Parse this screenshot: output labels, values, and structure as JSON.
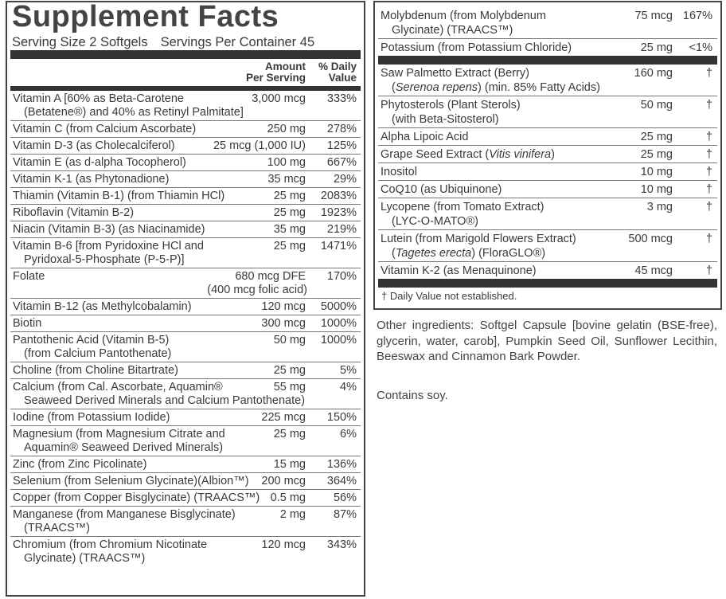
{
  "title": "Supplement Facts",
  "serving_size": "Serving Size 2 Softgels",
  "servings_per_container": "Servings Per Container 45",
  "header": {
    "amount": [
      "Amount",
      "Per Serving"
    ],
    "daily_value": [
      "% Daily",
      "Value"
    ]
  },
  "left_rows": [
    {
      "name": [
        "Vitamin A [60% as Beta-Carotene",
        "(Betatene®) and 40% as Retinyl Palmitate]"
      ],
      "amount": "3,000 mcg",
      "dv": "333%"
    },
    {
      "name": [
        "Vitamin C (from Calcium Ascorbate)"
      ],
      "amount": "250 mg",
      "dv": "278%"
    },
    {
      "name": [
        "Vitamin D-3 (as Cholecalciferol)"
      ],
      "amount": "25 mcg (1,000 IU)",
      "dv": "125%"
    },
    {
      "name": [
        "Vitamin E (as d-alpha Tocopherol)"
      ],
      "amount": "100 mg",
      "dv": "667%"
    },
    {
      "name": [
        "Vitamin K-1 (as Phytonadione)"
      ],
      "amount": "35 mcg",
      "dv": "29%"
    },
    {
      "name": [
        "Thiamin (Vitamin B-1) (from Thiamin HCl)"
      ],
      "amount": "25 mg",
      "dv": "2083%"
    },
    {
      "name": [
        "Riboflavin (Vitamin B-2)"
      ],
      "amount": "25 mg",
      "dv": "1923%"
    },
    {
      "name": [
        "Niacin (Vitamin B-3) (as Niacinamide)"
      ],
      "amount": "35 mg",
      "dv": "219%"
    },
    {
      "name": [
        "Vitamin B-6 [from Pyridoxine HCl and",
        "Pyridoxal-5-Phosphate (P-5-P)]"
      ],
      "amount": "25 mg",
      "dv": "1471%"
    },
    {
      "name": [
        "Folate"
      ],
      "amount": "680 mcg DFE",
      "amount_note": "(400 mcg folic acid)",
      "dv": "170%"
    },
    {
      "name": [
        "Vitamin B-12 (as Methylcobalamin)"
      ],
      "amount": "120 mcg",
      "dv": "5000%"
    },
    {
      "name": [
        "Biotin"
      ],
      "amount": "300 mcg",
      "dv": "1000%"
    },
    {
      "name": [
        "Pantothenic Acid (Vitamin B-5)",
        "(from Calcium Pantothenate)"
      ],
      "amount": "50 mg",
      "dv": "1000%"
    },
    {
      "name": [
        "Choline (from Choline Bitartrate)"
      ],
      "amount": "25 mg",
      "dv": "5%"
    },
    {
      "name": [
        "Calcium (from Cal. Ascorbate, Aquamin®",
        "Seaweed Derived Minerals and Calcium Pantothenate)"
      ],
      "amount": "55 mg",
      "dv": "4%"
    },
    {
      "name": [
        "Iodine (from Potassium Iodide)"
      ],
      "amount": "225 mcg",
      "dv": "150%"
    },
    {
      "name": [
        "Magnesium (from Magnesium Citrate and",
        "Aquamin® Seaweed Derived Minerals)"
      ],
      "amount": "25 mg",
      "dv": "6%"
    },
    {
      "name": [
        "Zinc (from Zinc Picolinate)"
      ],
      "amount": "15 mg",
      "dv": "136%"
    },
    {
      "name": [
        "Selenium (from Selenium Glycinate)(Albion™)"
      ],
      "amount": "200 mcg",
      "dv": "364%"
    },
    {
      "name": [
        "Copper (from Copper Bisglycinate) (TRAACS™)"
      ],
      "amount": "0.5 mg",
      "dv": "56%"
    },
    {
      "name": [
        "Manganese (from Manganese Bisglycinate)",
        "(TRAACS™)"
      ],
      "amount": "2 mg",
      "dv": "87%"
    },
    {
      "name": [
        "Chromium (from Chromium Nicotinate",
        "Glycinate) (TRAACS™)"
      ],
      "amount": "120 mcg",
      "dv": "343%"
    }
  ],
  "right_groups": [
    [
      {
        "name": [
          "Molybdenum (from Molybdenum",
          "Glycinate) (TRAACS™)"
        ],
        "amount": "75 mcg",
        "dv": "167%"
      },
      {
        "name": [
          "Potassium (from Potassium Chloride)"
        ],
        "amount": "25 mg",
        "dv": "<1%"
      }
    ],
    [
      {
        "name": [
          "Saw Palmetto Extract (Berry)",
          "(Serenoa repens) (min. 85% Fatty Acids)"
        ],
        "italic": "Serenoa repens",
        "amount": "160 mg",
        "dv": "†"
      },
      {
        "name": [
          "Phytosterols (Plant Sterols)",
          "(with Beta-Sitosterol)"
        ],
        "amount": "50 mg",
        "dv": "†"
      },
      {
        "name": [
          "Alpha Lipoic Acid"
        ],
        "amount": "25 mg",
        "dv": "†"
      },
      {
        "name": [
          "Grape Seed Extract (Vitis vinifera)"
        ],
        "italic": "Vitis vinifera",
        "amount": "25 mg",
        "dv": "†"
      },
      {
        "name": [
          "Inositol"
        ],
        "amount": "10 mg",
        "dv": "†"
      },
      {
        "name": [
          "CoQ10 (as Ubiquinone)"
        ],
        "amount": "10 mg",
        "dv": "†"
      },
      {
        "name": [
          "Lycopene (from Tomato Extract)",
          "(LYC-O-MATO®)"
        ],
        "amount": "3 mg",
        "dv": "†"
      },
      {
        "name": [
          "Lutein (from Marigold Flowers Extract)",
          "(Tagetes erecta) (FloraGLO®)"
        ],
        "italic": "Tagetes erecta",
        "amount": "500 mcg",
        "dv": "†"
      },
      {
        "name": [
          "Vitamin K-2 (as Menaquinone)"
        ],
        "amount": "45 mcg",
        "dv": "†"
      }
    ]
  ],
  "footnote": "† Daily Value not established.",
  "other_ingredients": "Other ingredients: Softgel Capsule [bovine gelatin (BSE-free), glycerin, water, carob], Pumpkin Seed Oil, Sunflower Lecithin, Beeswax and Cinnamon Bark Powder.",
  "contains": "Contains soy."
}
